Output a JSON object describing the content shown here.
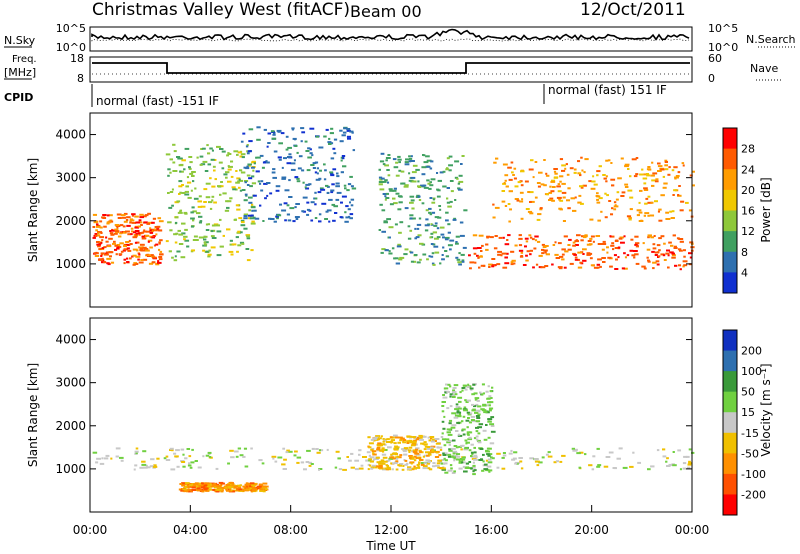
{
  "header": {
    "title": "Christmas Valley West (fitACF)",
    "beam": "Beam 00",
    "date": "12/Oct/2011"
  },
  "panels": {
    "nsky": {
      "left_label": "N.Sky",
      "left_ticks": [
        "10^5",
        "10^0"
      ],
      "right_ticks": [
        "10^5",
        "10^0"
      ],
      "right_label": "N.Search"
    },
    "freq": {
      "left_label": "Freq.",
      "left_unit": "[MHz]",
      "left_ticks": [
        "18",
        "8"
      ],
      "right_ticks": [
        "60",
        "0"
      ],
      "right_label": "Nave"
    },
    "cpid": {
      "label": "CPID",
      "modes": [
        {
          "label": "normal (fast) -151 IF"
        },
        {
          "label": "normal (fast) 151 IF"
        }
      ]
    }
  },
  "chart_data": [
    {
      "type": "heatmap",
      "name": "Power",
      "xlabel": "",
      "ylabel": "Slant Range [km]",
      "ylim": [
        0,
        4500
      ],
      "yticks": [
        "1000",
        "2000",
        "3000",
        "4000"
      ],
      "colorbar": {
        "label": "Power [dB]",
        "ticks": [
          "28",
          "24",
          "20",
          "16",
          "12",
          "8",
          "4"
        ],
        "colors": [
          "#ff0000",
          "#ff5a00",
          "#ff9c00",
          "#f0c800",
          "#8ec83a",
          "#40a060",
          "#2e70b0",
          "#1030d0"
        ]
      },
      "features": [
        {
          "type": "echo_band",
          "x_hours": [
            0.1,
            2.8
          ],
          "range_km": [
            1000,
            2200
          ],
          "level_db": 28
        },
        {
          "type": "echo_band",
          "x_hours": [
            3.0,
            6.5
          ],
          "range_km": [
            1100,
            3800
          ],
          "level_db": 16
        },
        {
          "type": "echo_band",
          "x_hours": [
            6.0,
            10.5
          ],
          "range_km": [
            2000,
            4200
          ],
          "level_db": 8
        },
        {
          "type": "echo_band",
          "x_hours": [
            11.5,
            14.9
          ],
          "range_km": [
            1000,
            3600
          ],
          "level_db": 12
        },
        {
          "type": "echo_band",
          "x_hours": [
            15.0,
            24.0
          ],
          "range_km": [
            900,
            1700
          ],
          "level_db": 28
        },
        {
          "type": "echo_band",
          "x_hours": [
            16.0,
            24.0
          ],
          "range_km": [
            2000,
            3500
          ],
          "level_db": 24
        }
      ]
    },
    {
      "type": "heatmap",
      "name": "Velocity",
      "xlabel": "Time UT",
      "ylabel": "Slant Range [km]",
      "ylim": [
        0,
        4500
      ],
      "yticks": [
        "1000",
        "2000",
        "3000",
        "4000"
      ],
      "xticks": [
        "00:00",
        "04:00",
        "08:00",
        "12:00",
        "16:00",
        "20:00",
        "00:00"
      ],
      "xlim_hours": [
        0,
        24
      ],
      "colorbar": {
        "label": "Velocity [m s⁻¹]",
        "ticks": [
          "200",
          "100",
          "50",
          "15",
          "-15",
          "-50",
          "-100",
          "-200"
        ],
        "colors": [
          "#1030c0",
          "#2e70b0",
          "#3a9a3a",
          "#70d040",
          "#c8c8c8",
          "#f0c000",
          "#ff9000",
          "#ff5000",
          "#ff0000"
        ]
      },
      "features": [
        {
          "type": "echo_band",
          "x_hours": [
            0.1,
            24.0
          ],
          "range_km": [
            1000,
            1500
          ],
          "value_ms": 0
        },
        {
          "type": "echo_band",
          "x_hours": [
            3.5,
            7.0
          ],
          "range_km": [
            500,
            700
          ],
          "value_ms": -60
        },
        {
          "type": "echo_band",
          "x_hours": [
            14.0,
            16.0
          ],
          "range_km": [
            900,
            3000
          ],
          "value_ms": 40
        },
        {
          "type": "echo_band",
          "x_hours": [
            11.0,
            14.0
          ],
          "range_km": [
            1000,
            1800
          ],
          "value_ms": -50
        }
      ]
    }
  ]
}
